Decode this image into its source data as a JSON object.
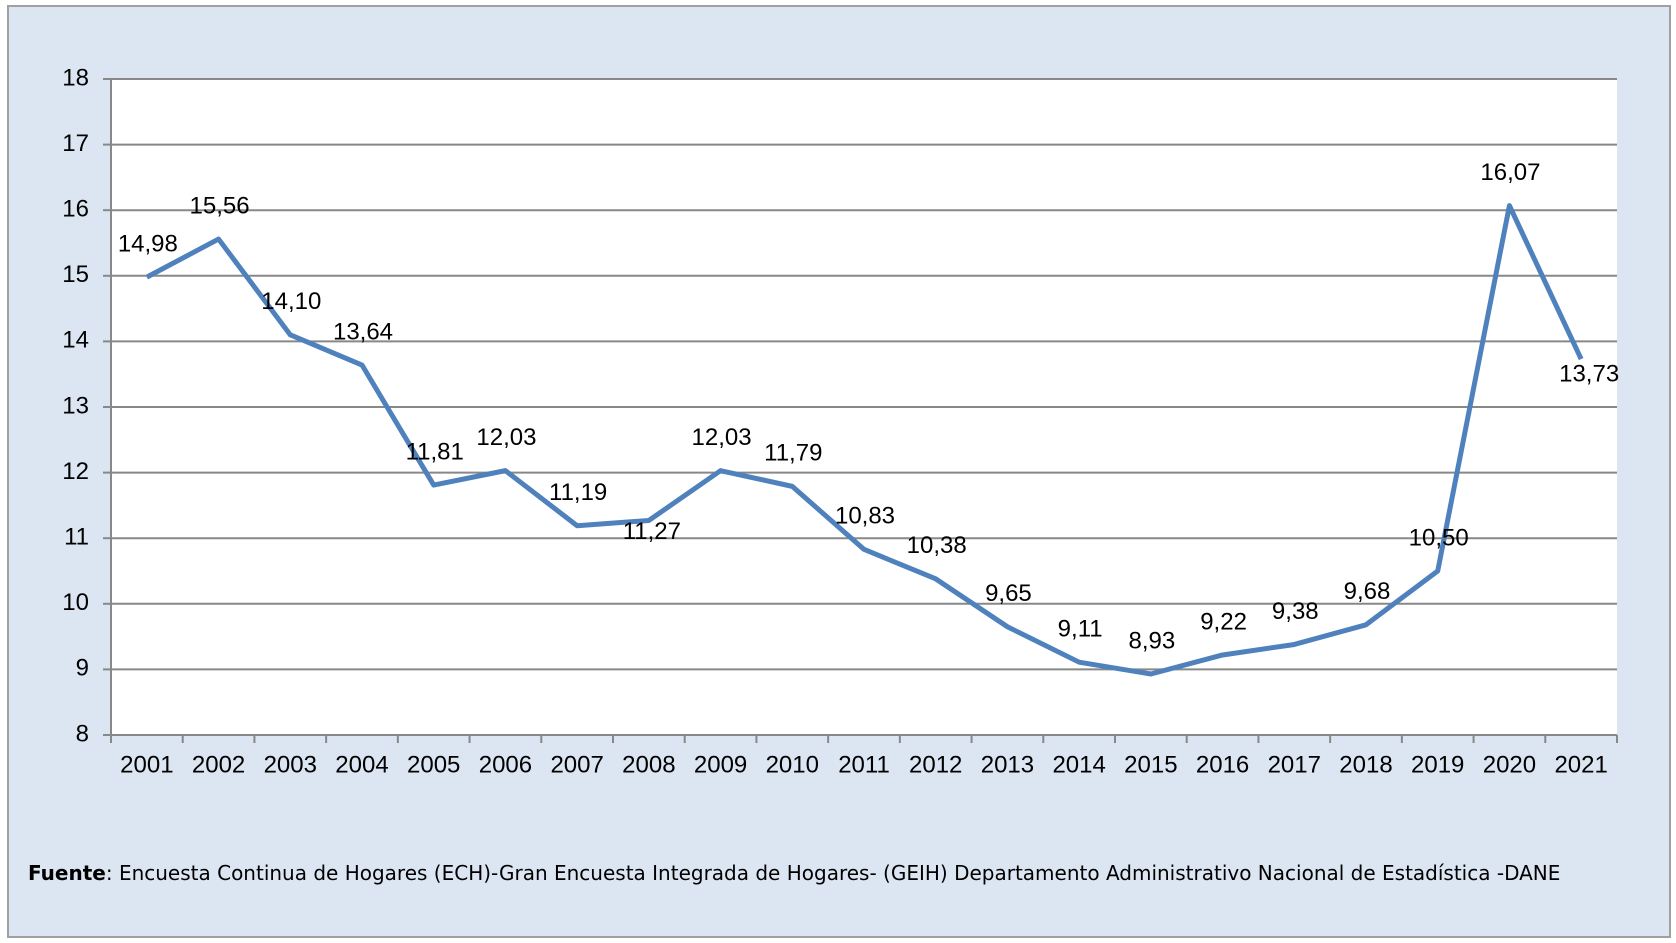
{
  "chart_data": {
    "type": "line",
    "categories": [
      "2001",
      "2002",
      "2003",
      "2004",
      "2005",
      "2006",
      "2007",
      "2008",
      "2009",
      "2010",
      "2011",
      "2012",
      "2013",
      "2014",
      "2015",
      "2016",
      "2017",
      "2018",
      "2019",
      "2020",
      "2021"
    ],
    "series": [
      {
        "color": "#4f81bd",
        "values": [
          14.98,
          15.56,
          14.1,
          13.64,
          11.81,
          12.03,
          11.19,
          11.27,
          12.03,
          11.79,
          10.83,
          10.38,
          9.65,
          9.11,
          8.93,
          9.22,
          9.38,
          9.68,
          10.5,
          16.07,
          13.73
        ],
        "value_labels": [
          "14,98",
          "15,56",
          "14,10",
          "13,64",
          "11,81",
          "12,03",
          "11,19",
          "11,27",
          "12,03",
          "11,79",
          "10,83",
          "10,38",
          "9,65",
          "9,11",
          "8,93",
          "9,22",
          "9,38",
          "9,68",
          "10,50",
          "16,07",
          "13,73"
        ]
      }
    ],
    "ylim": [
      8,
      18
    ],
    "yticks": [
      8,
      9,
      10,
      11,
      12,
      13,
      14,
      15,
      16,
      17,
      18
    ],
    "grid": true,
    "source_label": "Fuente",
    "source": ": Encuesta Continua de Hogares (ECH)-Gran Encuesta Integrada de Hogares- (GEIH) Departamento Administrativo Nacional de Estadística -DANE"
  }
}
